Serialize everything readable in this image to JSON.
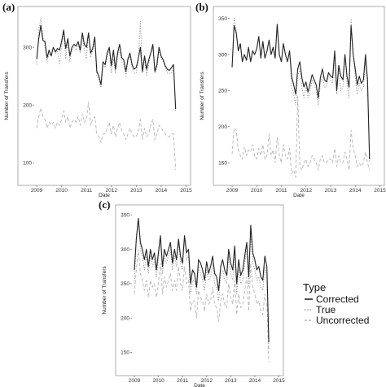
{
  "chart_data": [
    {
      "panel_label": "(a)",
      "type": "line",
      "xlabel": "Date",
      "ylabel": "Number of Transfers",
      "x_ticks": [
        "2009",
        "2010",
        "2011",
        "2012",
        "2013",
        "2014",
        "2015"
      ],
      "y_ticks": [
        100,
        200,
        300
      ],
      "xlim": [
        2008.9,
        2015.05
      ],
      "ylim": [
        75,
        365
      ],
      "grid": false,
      "x_start": 2009.0,
      "x_step": 0.0833,
      "series": [
        {
          "name": "Corrected",
          "style": "solid",
          "values": [
            280,
            315,
            338,
            312,
            310,
            282,
            295,
            285,
            300,
            292,
            298,
            295,
            310,
            330,
            298,
            315,
            285,
            300,
            305,
            302,
            310,
            295,
            325,
            305,
            300,
            325,
            290,
            298,
            318,
            258,
            250,
            235,
            275,
            270,
            290,
            300,
            268,
            295,
            262,
            290,
            305,
            282,
            278,
            258,
            280,
            290,
            270,
            262,
            265,
            280,
            300,
            258,
            285,
            262,
            278,
            290,
            305,
            258,
            270,
            300,
            285,
            278,
            268,
            262,
            260,
            265,
            270,
            193
          ]
        },
        {
          "name": "True",
          "style": "dotted",
          "values": [
            270,
            330,
            350,
            320,
            300,
            275,
            290,
            285,
            300,
            290,
            295,
            270,
            300,
            325,
            280,
            310,
            275,
            295,
            300,
            295,
            305,
            290,
            320,
            295,
            280,
            325,
            282,
            295,
            310,
            250,
            245,
            230,
            270,
            265,
            285,
            295,
            255,
            280,
            255,
            285,
            295,
            275,
            270,
            250,
            275,
            285,
            265,
            255,
            255,
            275,
            345,
            255,
            280,
            250,
            270,
            290,
            300,
            255,
            265,
            295,
            280,
            275,
            265,
            255,
            255,
            255,
            265,
            190
          ]
        },
        {
          "name": "Uncorrected",
          "style": "dashed",
          "values": [
            160,
            180,
            195,
            180,
            175,
            160,
            170,
            165,
            170,
            160,
            170,
            165,
            175,
            190,
            170,
            180,
            160,
            170,
            175,
            170,
            180,
            165,
            185,
            170,
            175,
            205,
            165,
            175,
            180,
            150,
            145,
            135,
            150,
            150,
            160,
            170,
            150,
            165,
            145,
            160,
            170,
            155,
            150,
            140,
            150,
            160,
            150,
            145,
            145,
            155,
            175,
            140,
            160,
            145,
            150,
            165,
            175,
            140,
            150,
            165,
            160,
            155,
            150,
            145,
            145,
            150,
            150,
            88
          ]
        }
      ]
    },
    {
      "panel_label": "(b)",
      "type": "line",
      "xlabel": "Date",
      "ylabel": "Number of Transfers",
      "x_ticks": [
        "2009",
        "2010",
        "2011",
        "2012",
        "2013",
        "2014",
        "2015"
      ],
      "y_ticks": [
        150,
        200,
        250,
        300,
        350
      ],
      "xlim": [
        2008.9,
        2015.05
      ],
      "ylim": [
        130,
        362
      ],
      "grid": false,
      "x_start": 2009.0,
      "x_step": 0.0833,
      "series": [
        {
          "name": "Corrected",
          "style": "solid",
          "values": [
            282,
            340,
            330,
            305,
            315,
            290,
            300,
            292,
            310,
            290,
            305,
            300,
            308,
            325,
            295,
            318,
            295,
            305,
            320,
            300,
            310,
            295,
            342,
            300,
            290,
            315,
            300,
            290,
            305,
            270,
            258,
            245,
            280,
            290,
            268,
            255,
            262,
            248,
            260,
            272,
            265,
            258,
            240,
            268,
            280,
            265,
            262,
            275,
            270,
            268,
            305,
            250,
            285,
            270,
            265,
            300,
            270,
            255,
            340,
            300,
            280,
            258,
            270,
            260,
            265,
            300,
            265,
            155
          ]
        },
        {
          "name": "True",
          "style": "dotted",
          "values": [
            282,
            352,
            335,
            305,
            315,
            290,
            300,
            292,
            310,
            290,
            305,
            300,
            308,
            325,
            295,
            318,
            295,
            305,
            320,
            300,
            310,
            295,
            342,
            300,
            290,
            315,
            300,
            290,
            305,
            255,
            245,
            230,
            270,
            280,
            255,
            240,
            255,
            240,
            250,
            265,
            258,
            250,
            230,
            260,
            270,
            255,
            255,
            270,
            265,
            260,
            300,
            245,
            280,
            250,
            255,
            300,
            260,
            240,
            350,
            300,
            270,
            245,
            260,
            250,
            255,
            290,
            255,
            150
          ]
        },
        {
          "name": "Uncorrected",
          "style": "dashed",
          "values": [
            162,
            198,
            195,
            168,
            160,
            155,
            172,
            160,
            168,
            165,
            175,
            160,
            155,
            170,
            160,
            175,
            155,
            160,
            190,
            160,
            168,
            150,
            185,
            160,
            150,
            175,
            160,
            155,
            170,
            135,
            140,
            130,
            242,
            145,
            140,
            150,
            155,
            145,
            150,
            160,
            155,
            150,
            140,
            155,
            160,
            150,
            150,
            155,
            155,
            150,
            170,
            145,
            160,
            150,
            150,
            165,
            155,
            140,
            195,
            170,
            160,
            145,
            150,
            145,
            150,
            165,
            150,
            140
          ]
        }
      ]
    },
    {
      "panel_label": "(c)",
      "type": "line",
      "xlabel": "Date",
      "ylabel": "Number of Transfers",
      "x_ticks": [
        "2009",
        "2010",
        "2011",
        "2012",
        "2013",
        "2014",
        "2015"
      ],
      "y_ticks": [
        150,
        200,
        250,
        300,
        350
      ],
      "xlim": [
        2008.9,
        2015.05
      ],
      "ylim": [
        128,
        360
      ],
      "grid": false,
      "x_start": 2009.0,
      "x_step": 0.0833,
      "series": [
        {
          "name": "Corrected",
          "style": "solid",
          "values": [
            270,
            315,
            345,
            310,
            300,
            285,
            300,
            275,
            300,
            285,
            295,
            270,
            295,
            320,
            275,
            300,
            290,
            300,
            310,
            280,
            300,
            285,
            315,
            290,
            280,
            320,
            295,
            300,
            250,
            270,
            265,
            245,
            285,
            280,
            270,
            255,
            282,
            265,
            275,
            290,
            265,
            260,
            240,
            275,
            285,
            270,
            262,
            300,
            280,
            270,
            305,
            250,
            285,
            262,
            270,
            290,
            310,
            260,
            335,
            295,
            285,
            270,
            275,
            260,
            255,
            290,
            275,
            165
          ]
        },
        {
          "name": "True",
          "style": "dotted",
          "values": [
            250,
            320,
            345,
            300,
            290,
            270,
            290,
            265,
            290,
            275,
            285,
            260,
            285,
            315,
            265,
            290,
            280,
            290,
            300,
            270,
            290,
            275,
            310,
            280,
            270,
            315,
            285,
            290,
            235,
            255,
            255,
            235,
            275,
            265,
            255,
            240,
            270,
            255,
            260,
            280,
            250,
            245,
            225,
            260,
            270,
            255,
            250,
            290,
            265,
            255,
            295,
            235,
            270,
            250,
            255,
            280,
            300,
            245,
            325,
            280,
            270,
            255,
            260,
            245,
            240,
            275,
            260,
            155
          ]
        },
        {
          "name": "Uncorrected",
          "style": "dashed",
          "values": [
            235,
            270,
            300,
            265,
            255,
            240,
            255,
            230,
            255,
            245,
            250,
            230,
            250,
            280,
            235,
            260,
            245,
            255,
            265,
            240,
            255,
            240,
            275,
            250,
            240,
            275,
            250,
            255,
            210,
            225,
            225,
            200,
            240,
            230,
            225,
            210,
            235,
            220,
            225,
            245,
            220,
            215,
            195,
            225,
            235,
            220,
            215,
            250,
            230,
            220,
            255,
            205,
            235,
            215,
            220,
            240,
            260,
            210,
            280,
            245,
            235,
            220,
            225,
            210,
            205,
            235,
            220,
            135
          ]
        }
      ]
    }
  ],
  "legend": {
    "title": "Type",
    "items": [
      {
        "label": "Corrected",
        "style": "solid",
        "color": "#222222"
      },
      {
        "label": "True",
        "style": "dotted",
        "color": "#9a9a9a"
      },
      {
        "label": "Uncorrected",
        "style": "dashed",
        "color": "#b5b5b5"
      }
    ]
  },
  "colors": {
    "Corrected": "#222222",
    "True": "#9a9a9a",
    "Uncorrected": "#b5b5b5",
    "panel_border": "#999999"
  }
}
